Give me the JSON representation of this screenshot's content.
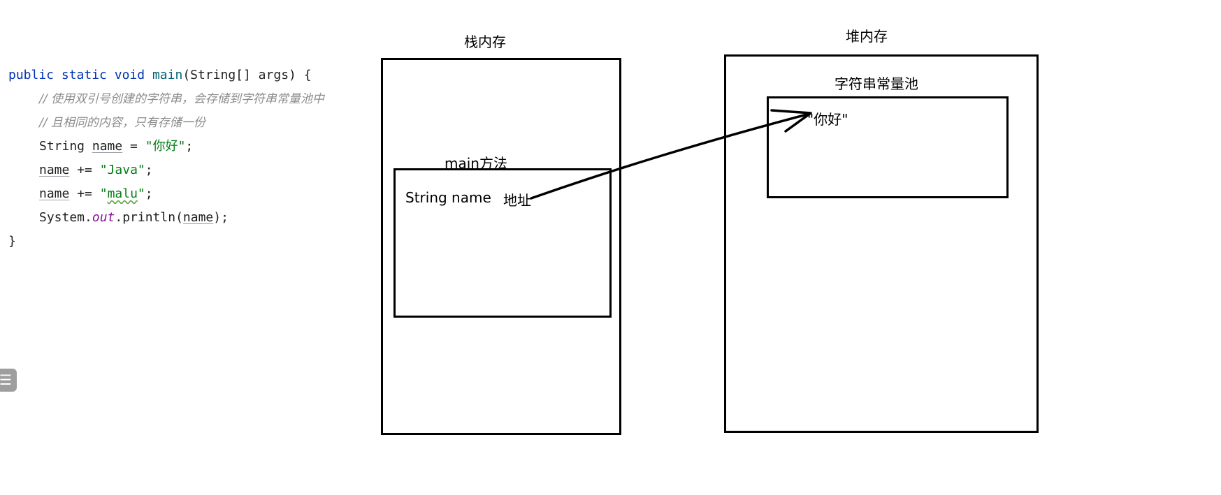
{
  "code": {
    "kw_public": "public",
    "kw_static": "static",
    "kw_void": "void",
    "fn_main": "main",
    "sig_rest": "(String[] args) {",
    "comment1": "// 使用双引号创建的字符串，会存储到字符串常量池中",
    "comment2": "// 且相同的内容，只有存储一份",
    "l3_type": "String ",
    "l3_var": "name",
    "l3_op": " = ",
    "l3_str": "\"你好\"",
    "l3_end": ";",
    "l4_var": "name",
    "l4_op": " += ",
    "l4_str": "\"Java\"",
    "l4_end": ";",
    "l5_var": "name",
    "l5_op": " += ",
    "l5_str_q1": "\"",
    "l5_str_body": "malu",
    "l5_str_q2": "\"",
    "l5_end": ";",
    "l6_prefix": "System.",
    "l6_field": "out",
    "l6_call": ".println(",
    "l6_var": "name",
    "l6_end": ");",
    "closing": "}"
  },
  "diagram": {
    "stack_title": "栈内存",
    "heap_title": "堆内存",
    "pool_title": "字符串常量池",
    "main_title": "main方法",
    "var_label": "String name",
    "addr_label": "地址",
    "pool_value": "\"你好\""
  },
  "menu_icon": "☰",
  "colors": {
    "keyword": "#0033b3",
    "function": "#00627a",
    "comment": "#8c8c8c",
    "string": "#067d17",
    "field": "#871094",
    "stroke": "#000000"
  }
}
